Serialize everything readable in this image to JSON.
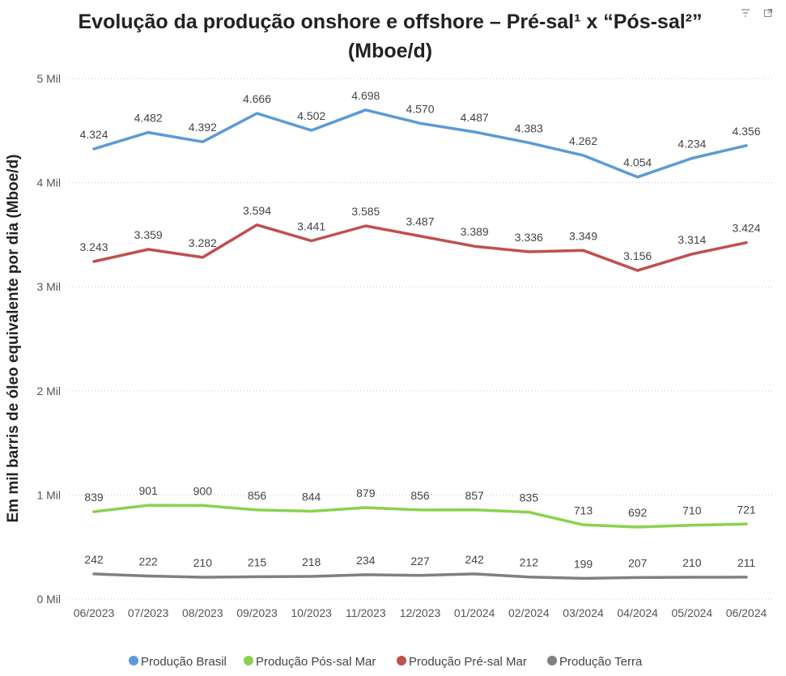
{
  "icons": {
    "filter": "filter-icon",
    "expand": "focus-mode-icon"
  },
  "chart_data": {
    "type": "line",
    "title_line1": "Evolução da produção onshore e offshore – Pré-sal¹ x “Pós-sal²”",
    "title_line2": "(Mboe/d)",
    "xlabel": "",
    "ylabel": "Em mil barris de óleo equivalente por dia (Mboe/d)",
    "ylim": [
      0,
      5000
    ],
    "yticks": [
      0,
      1000,
      2000,
      3000,
      4000,
      5000
    ],
    "ytick_labels": [
      "0 Mil",
      "1 Mil",
      "2 Mil",
      "3 Mil",
      "4 Mil",
      "5 Mil"
    ],
    "grid": true,
    "legend_position": "bottom",
    "categories": [
      "06/2023",
      "07/2023",
      "08/2023",
      "09/2023",
      "10/2023",
      "11/2023",
      "12/2023",
      "01/2024",
      "02/2024",
      "03/2024",
      "04/2024",
      "05/2024",
      "06/2024"
    ],
    "series": [
      {
        "name": "Produção Brasil",
        "color": "#5B9BD5",
        "values": [
          4324,
          4482,
          4392,
          4666,
          4502,
          4698,
          4570,
          4487,
          4383,
          4262,
          4054,
          4234,
          4356
        ],
        "labels": [
          "4.324",
          "4.482",
          "4.392",
          "4.666",
          "4.502",
          "4.698",
          "4.570",
          "4.487",
          "4.383",
          "4.262",
          "4.054",
          "4.234",
          "4.356"
        ]
      },
      {
        "name": "Produção Pós-sal Mar",
        "color": "#8BD14F",
        "values": [
          839,
          901,
          900,
          856,
          844,
          879,
          856,
          857,
          835,
          713,
          692,
          710,
          721
        ],
        "labels": [
          "839",
          "901",
          "900",
          "856",
          "844",
          "879",
          "856",
          "857",
          "835",
          "713",
          "692",
          "710",
          "721"
        ]
      },
      {
        "name": "Produção Pré-sal Mar",
        "color": "#C0504D",
        "values": [
          3243,
          3359,
          3282,
          3594,
          3441,
          3585,
          3487,
          3389,
          3336,
          3349,
          3156,
          3314,
          3424
        ],
        "labels": [
          "3.243",
          "3.359",
          "3.282",
          "3.594",
          "3.441",
          "3.585",
          "3.487",
          "3.389",
          "3.336",
          "3.349",
          "3.156",
          "3.314",
          "3.424"
        ]
      },
      {
        "name": "Produção Terra",
        "color": "#808080",
        "values": [
          242,
          222,
          210,
          215,
          218,
          234,
          227,
          242,
          212,
          199,
          207,
          210,
          211
        ],
        "labels": [
          "242",
          "222",
          "210",
          "215",
          "218",
          "234",
          "227",
          "242",
          "212",
          "199",
          "207",
          "210",
          "211"
        ]
      }
    ]
  }
}
